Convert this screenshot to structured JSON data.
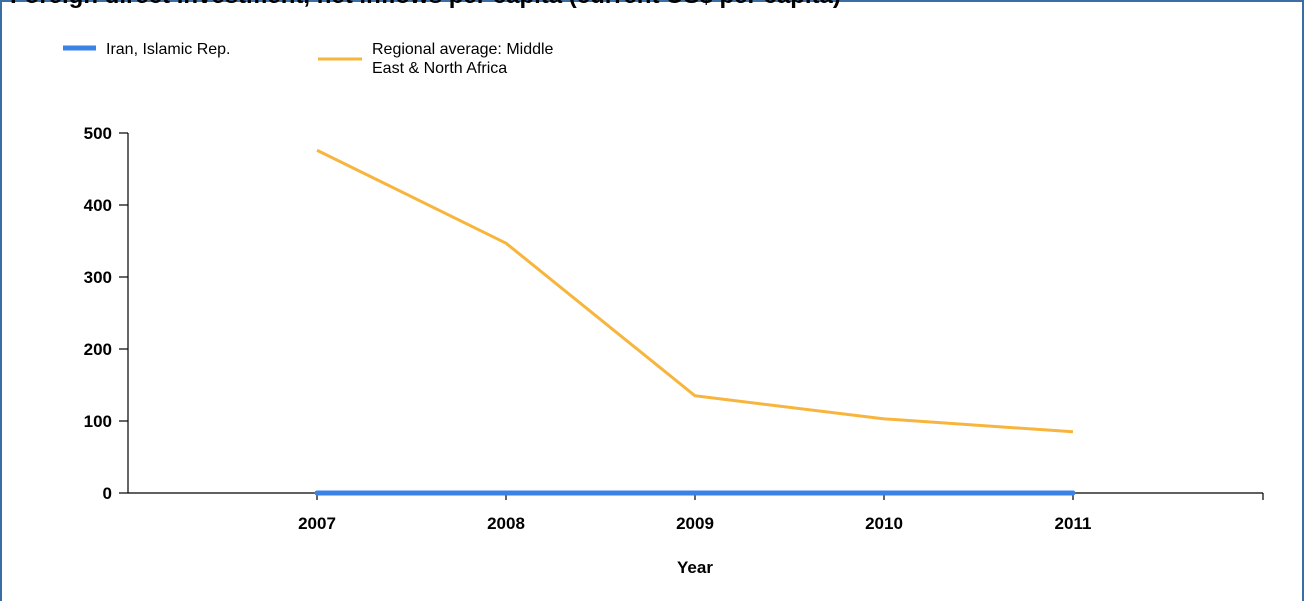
{
  "chart_data": {
    "type": "line",
    "title": "Foreign direct investment, net inflows per capita (current US$ per capita)",
    "xlabel": "Year",
    "ylabel": "",
    "ylim": [
      0,
      500
    ],
    "yticks": [
      "0",
      "100",
      "200",
      "300",
      "400",
      "500"
    ],
    "categories": [
      "2007",
      "2008",
      "2009",
      "2010",
      "2011"
    ],
    "legend_position": "top-left",
    "grid": false,
    "series": [
      {
        "name": "Iran, Islamic Rep.",
        "color": "#3b82e6",
        "values": [
          0,
          0,
          0,
          0,
          0
        ]
      },
      {
        "name": "Regional average: Middle East & North Africa",
        "legend_lines": [
          "Regional average: Middle",
          "East & North Africa"
        ],
        "color": "#f8b53d",
        "values": [
          476,
          347,
          135,
          103,
          85
        ]
      }
    ]
  }
}
